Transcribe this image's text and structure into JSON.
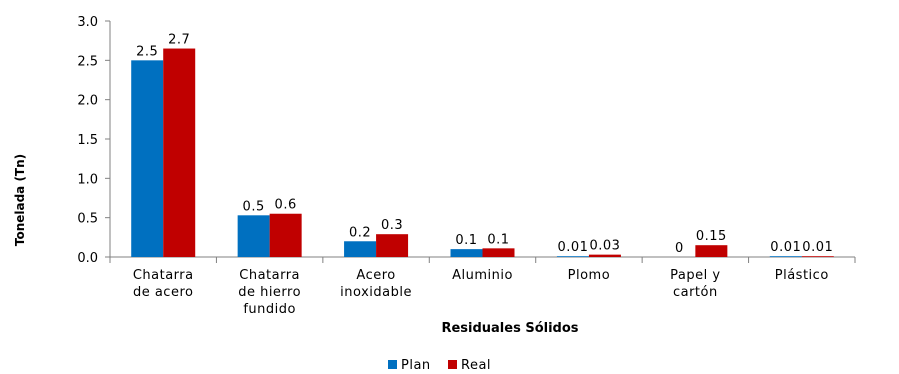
{
  "chart_data": {
    "type": "bar",
    "xlabel": "Residuales Sólidos",
    "ylabel": "Tonelada (Tn)",
    "ylim": [
      0,
      3.0
    ],
    "yticks": [
      "0.0",
      "0.5",
      "1.0",
      "1.5",
      "2.0",
      "2.5",
      "3.0"
    ],
    "grid": false,
    "legend_position": "bottom",
    "categories": [
      [
        "Chatarra",
        "de acero"
      ],
      [
        "Chatarra",
        "de hierro",
        "fundido"
      ],
      [
        "Acero",
        "inoxidable"
      ],
      [
        "Aluminio"
      ],
      [
        "Plomo"
      ],
      [
        "Papel y",
        "cartón"
      ],
      [
        "Plástico"
      ]
    ],
    "series": [
      {
        "name": "Plan",
        "color": "#0070c0",
        "values": [
          2.5,
          0.53,
          0.2,
          0.1,
          0.01,
          0,
          0.01
        ],
        "labels": [
          "2.5",
          "0.5",
          "0.2",
          "0.1",
          "0.01",
          "0",
          "0.01"
        ]
      },
      {
        "name": "Real",
        "color": "#c00000",
        "values": [
          2.65,
          0.55,
          0.29,
          0.11,
          0.03,
          0.15,
          0.01
        ],
        "labels": [
          "2.7",
          "0.6",
          "0.3",
          "0.1",
          "0.03",
          "0.15",
          "0.01"
        ]
      }
    ]
  }
}
